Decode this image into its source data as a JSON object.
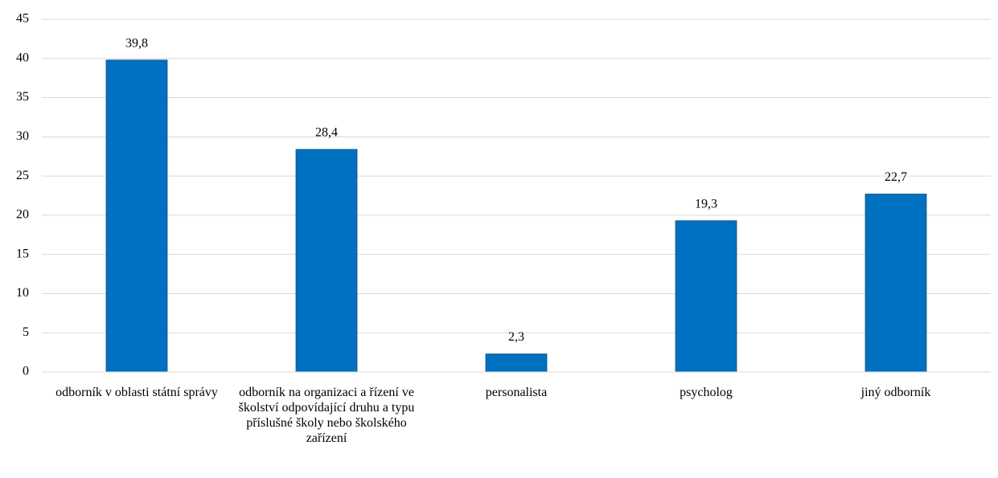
{
  "chart_data": {
    "type": "bar",
    "categories": [
      "odborník v oblasti státní správy",
      "odborník na organizaci a řízení ve školství odpovídající druhu a typu příslušné školy nebo školského zařízení",
      "personalista",
      "psycholog",
      "jiný odborník"
    ],
    "values": [
      39.8,
      28.4,
      2.3,
      19.3,
      22.7
    ],
    "value_labels": [
      "39,8",
      "28,4",
      "2,3",
      "19,3",
      "22,7"
    ],
    "color": "#0070c0",
    "ylim": [
      0,
      45
    ],
    "yticks": [
      0,
      5,
      10,
      15,
      20,
      25,
      30,
      35,
      40,
      45
    ],
    "grid": true
  }
}
